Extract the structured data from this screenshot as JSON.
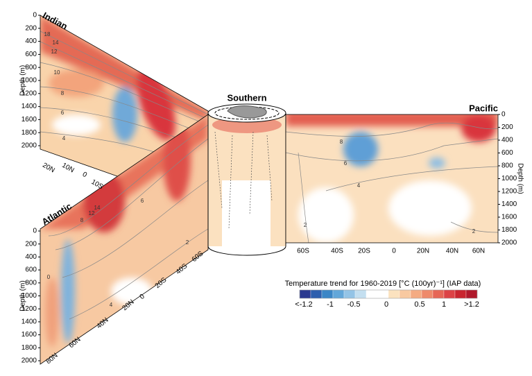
{
  "panels": [
    {
      "title": "Indian",
      "y_label": "Depth (m)",
      "yticks": [
        0,
        200,
        400,
        600,
        800,
        1000,
        1200,
        1400,
        1600,
        1800,
        2000
      ],
      "xticks": [
        "20N",
        "10N",
        "0",
        "10S"
      ],
      "contour_labels": [
        18,
        14,
        12,
        10,
        8,
        6,
        4
      ]
    },
    {
      "title": "Atlantic",
      "y_label": "Depth (m)",
      "yticks": [
        0,
        200,
        400,
        600,
        800,
        1000,
        1200,
        1400,
        1600,
        1800,
        2000
      ],
      "xticks": [
        "80N",
        "60N",
        "40N",
        "20N",
        "0",
        "20S",
        "40S",
        "60S"
      ],
      "contour_labels": [
        8,
        12,
        14,
        6,
        4,
        2,
        0
      ]
    },
    {
      "title": "Southern"
    },
    {
      "title": "Pacific",
      "y_label": "Depth (m)",
      "yticks": [
        0,
        200,
        400,
        600,
        800,
        1000,
        1200,
        1400,
        1600,
        1800,
        2000
      ],
      "xticks": [
        "60S",
        "40S",
        "20S",
        "0",
        "20N",
        "40N",
        "60N"
      ],
      "contour_labels": [
        8,
        6,
        4,
        2,
        2
      ]
    }
  ],
  "colorbar": {
    "title": "Temperature trend for 1960-2019 [°C (100yr)⁻¹] (IAP data)",
    "labels": [
      "<-1.2",
      "-1",
      "-0.5",
      "0",
      "0.5",
      "1",
      ">1.2"
    ],
    "colors": [
      "#2b3990",
      "#2e5fae",
      "#3b86c6",
      "#63a7d9",
      "#94c4e6",
      "#c4dff0",
      "#ffffff",
      "#ffffff",
      "#fbe2bf",
      "#f8c9a0",
      "#f4ab83",
      "#ee8a6b",
      "#e66656",
      "#dc4245",
      "#c9252f",
      "#b0182b"
    ]
  }
}
